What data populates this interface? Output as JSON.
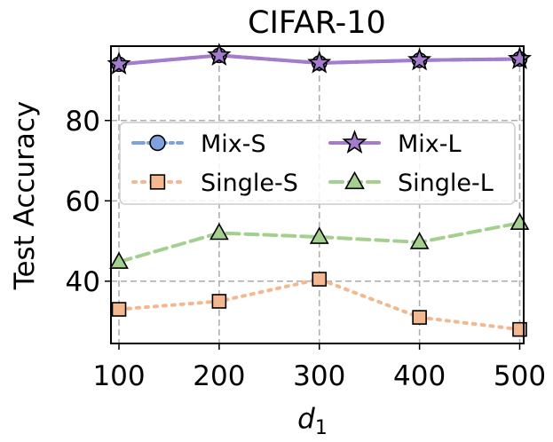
{
  "chart_data": {
    "type": "line",
    "title": "CIFAR-10",
    "xlabel_base": "d",
    "xlabel_sub": "1",
    "ylabel": "Test Accuracy",
    "x": [
      100,
      200,
      300,
      400,
      500
    ],
    "x_ticks": [
      "100",
      "200",
      "300",
      "400",
      "500"
    ],
    "y_ticks": [
      "40",
      "60",
      "80"
    ],
    "xlim": [
      92,
      504
    ],
    "ylim": [
      24.5,
      98.5
    ],
    "grid": true,
    "legend_position": "upper-center",
    "series": [
      {
        "name": "Mix-S",
        "values": [
          94.0,
          96.2,
          94.3,
          95.0,
          95.3
        ],
        "color": "#7fa2dc",
        "line_style": "dashdot",
        "marker": "circle"
      },
      {
        "name": "Mix-L",
        "values": [
          94.0,
          96.2,
          94.3,
          95.0,
          95.3
        ],
        "color": "#a57bcc",
        "line_style": "solid",
        "marker": "star"
      },
      {
        "name": "Single-S",
        "values": [
          33.0,
          35.0,
          40.5,
          31.0,
          28.0
        ],
        "color": "#f4b890",
        "line_style": "dotted",
        "marker": "square"
      },
      {
        "name": "Single-L",
        "values": [
          44.8,
          52.0,
          51.0,
          49.7,
          54.5
        ],
        "color": "#a3d08e",
        "line_style": "dashed",
        "marker": "triangle"
      }
    ]
  }
}
